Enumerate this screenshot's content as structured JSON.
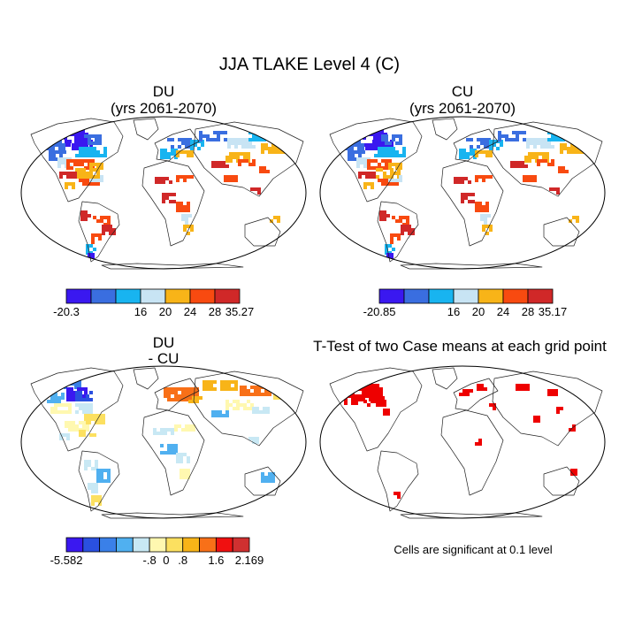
{
  "main_title": "JJA TLAKE Level 4 (C)",
  "panels": [
    {
      "id": "du",
      "title_line1": "DU",
      "title_line2": "(yrs 2061-2070)"
    },
    {
      "id": "cu",
      "title_line1": "CU",
      "title_line2": "(yrs 2061-2070)"
    },
    {
      "id": "diff",
      "title_line1": "DU",
      "title_line2": "- CU"
    },
    {
      "id": "ttest",
      "title_line1": "T-Test of two Case means at each grid point",
      "title_line2": ""
    }
  ],
  "colorbars": {
    "du": {
      "colors": [
        "#3a18f0",
        "#3a6ee0",
        "#18b4f0",
        "#c8e4f4",
        "#f8b418",
        "#f84a10",
        "#d02828"
      ],
      "labels": [
        "-20.3",
        "16",
        "20",
        "24",
        "28",
        "35.27"
      ]
    },
    "cu": {
      "colors": [
        "#3a18f0",
        "#3a6ee0",
        "#18b4f0",
        "#c8e4f4",
        "#f8b418",
        "#f84a10",
        "#d02828"
      ],
      "labels": [
        "-20.85",
        "16",
        "20",
        "24",
        "28",
        "35.17"
      ]
    },
    "diff": {
      "colors": [
        "#3a18f0",
        "#2a50e0",
        "#3a80e8",
        "#50b0f0",
        "#c8e8f4",
        "#fff8b0",
        "#fce060",
        "#f8b418",
        "#f87018",
        "#f01010",
        "#d03030"
      ],
      "labels": [
        "-5.582",
        "-.8",
        "0",
        ".8",
        "1.6",
        "2.169"
      ]
    }
  },
  "significance_note": "Cells are significant at 0.1 level",
  "colors": {
    "significant": "#ee0000",
    "coast": "#222222"
  }
}
